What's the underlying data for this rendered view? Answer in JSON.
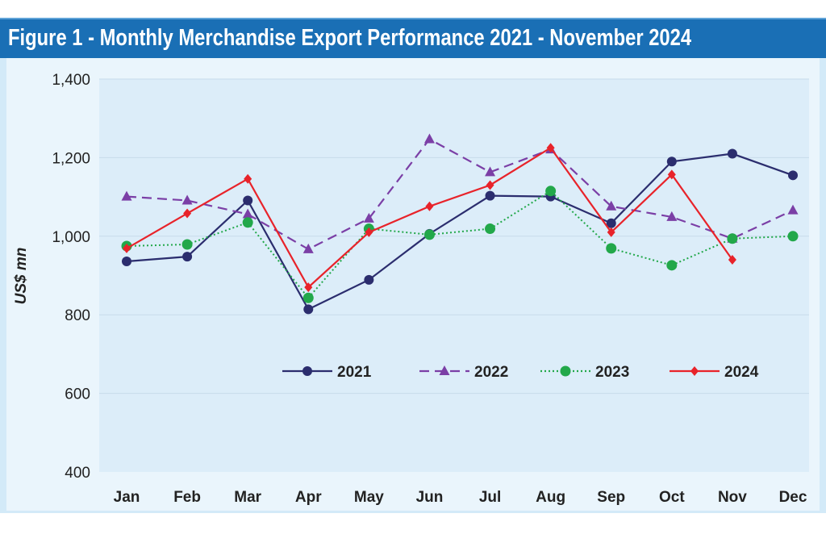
{
  "header": {
    "title": "Figure 1 - Monthly Merchandise Export Performance 2021 - November 2024"
  },
  "chart_data": {
    "type": "line",
    "title": "Figure 1 - Monthly Merchandise Export Performance 2021 - November 2024",
    "xlabel": "",
    "ylabel": "US$ mn",
    "ylim": [
      400,
      1400
    ],
    "yticks": [
      400,
      600,
      800,
      1000,
      1200,
      1400
    ],
    "ytick_labels": [
      "400",
      "600",
      "800",
      "1,000",
      "1,200",
      "1,400"
    ],
    "categories": [
      "Jan",
      "Feb",
      "Mar",
      "Apr",
      "May",
      "Jun",
      "Jul",
      "Aug",
      "Sep",
      "Oct",
      "Nov",
      "Dec"
    ],
    "grid": true,
    "legend": "center",
    "series": [
      {
        "name": "2021",
        "color": "#2b2d6e",
        "style": "solid",
        "marker": "circle",
        "values": [
          936,
          948,
          1091,
          814,
          889,
          1006,
          1103,
          1101,
          1033,
          1190,
          1210,
          1155
        ]
      },
      {
        "name": "2022",
        "color": "#7b3fa6",
        "style": "dashed",
        "marker": "triangle",
        "values": [
          1101,
          1091,
          1056,
          967,
          1045,
          1247,
          1163,
          1221,
          1076,
          1049,
          994,
          1066
        ]
      },
      {
        "name": "2023",
        "color": "#22a84a",
        "style": "dotted",
        "marker": "circle",
        "values": [
          975,
          979,
          1035,
          843,
          1019,
          1004,
          1019,
          1115,
          969,
          926,
          994,
          1000
        ]
      },
      {
        "name": "2024",
        "color": "#e8232a",
        "style": "solid",
        "marker": "diamond",
        "values": [
          969,
          1058,
          1146,
          870,
          1010,
          1076,
          1130,
          1225,
          1010,
          1157,
          940,
          null
        ]
      }
    ]
  }
}
